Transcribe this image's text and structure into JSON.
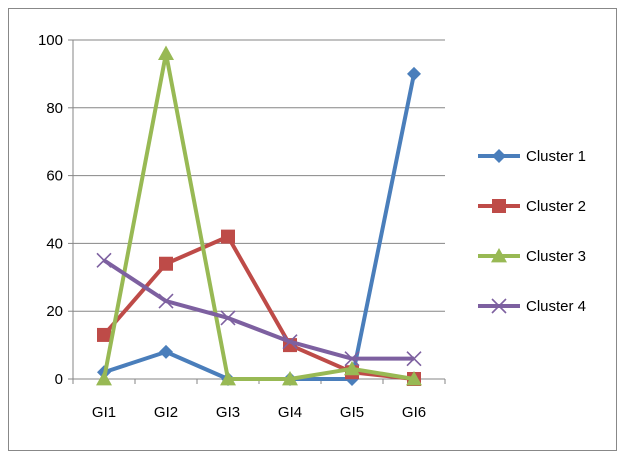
{
  "chart_data": {
    "type": "line",
    "categories": [
      "GI1",
      "GI2",
      "GI3",
      "GI4",
      "GI5",
      "GI6"
    ],
    "ylim": [
      0,
      100
    ],
    "yticks": [
      0,
      20,
      40,
      60,
      80,
      100
    ],
    "grid": true,
    "legend_position": "right",
    "series": [
      {
        "name": "Cluster 1",
        "values": [
          2,
          8,
          0,
          0,
          0,
          90
        ],
        "color": "#4a7ebb",
        "marker": "diamond"
      },
      {
        "name": "Cluster 2",
        "values": [
          13,
          34,
          42,
          10,
          2,
          0
        ],
        "color": "#be4b48",
        "marker": "square"
      },
      {
        "name": "Cluster 3",
        "values": [
          0,
          96,
          0,
          0,
          3,
          0
        ],
        "color": "#98b954",
        "marker": "triangle"
      },
      {
        "name": "Cluster 4",
        "values": [
          35,
          23,
          18,
          11,
          6,
          6
        ],
        "color": "#7d60a0",
        "marker": "x"
      }
    ]
  }
}
